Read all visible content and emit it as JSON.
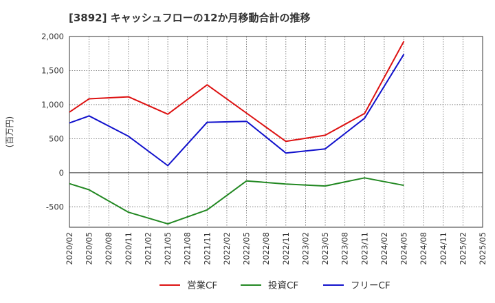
{
  "chart_data": {
    "type": "line",
    "title": "[3892]  キャッシュフローの12か月移動合計の推移",
    "ylabel": "(百万円)",
    "xlabel": "",
    "ylim": [
      -800,
      2000
    ],
    "yticks": [
      2000,
      1500,
      1000,
      500,
      0,
      -500
    ],
    "ytick_labels": [
      "2,000",
      "1,500",
      "1,000",
      "500",
      "0",
      "-500"
    ],
    "x": [
      "2020/02",
      "2020/05",
      "2020/08",
      "2020/11",
      "2021/02",
      "2021/05",
      "2021/08",
      "2021/11",
      "2022/02",
      "2022/05",
      "2022/08",
      "2022/11",
      "2023/02",
      "2023/05",
      "2023/08",
      "2023/11",
      "2024/02",
      "2024/05",
      "2024/08",
      "2024/11",
      "2025/02",
      "2025/05"
    ],
    "series": [
      {
        "name": "営業CF",
        "color": "#dd1111",
        "values": [
          890,
          1085,
          null,
          1115,
          null,
          860,
          null,
          1290,
          null,
          null,
          null,
          460,
          null,
          550,
          null,
          870,
          null,
          1930,
          null,
          null,
          null,
          null
        ]
      },
      {
        "name": "投資CF",
        "color": "#228822",
        "values": [
          -160,
          -250,
          null,
          -580,
          null,
          -750,
          null,
          -545,
          null,
          -120,
          null,
          -165,
          null,
          -195,
          null,
          -75,
          null,
          -185,
          null,
          null,
          null,
          null
        ]
      },
      {
        "name": "フリーCF",
        "color": "#1111cc",
        "values": [
          730,
          835,
          null,
          535,
          null,
          105,
          null,
          740,
          null,
          755,
          null,
          290,
          null,
          350,
          null,
          800,
          null,
          1740,
          null,
          null,
          null,
          null
        ]
      }
    ],
    "grid": true,
    "legend_position": "bottom"
  }
}
